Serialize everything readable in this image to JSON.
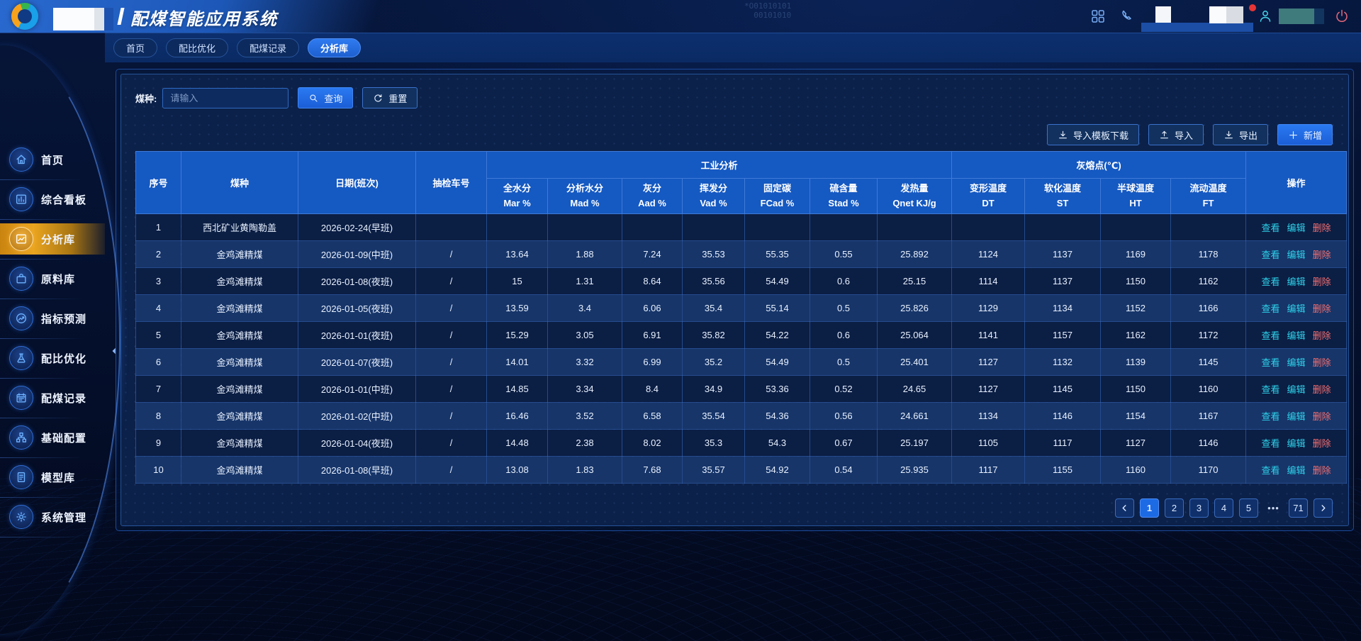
{
  "header": {
    "title": "配煤智能应用系统",
    "binary_decoration": "*O01010101\n  00101010",
    "icons": [
      {
        "name": "apps-grid-icon"
      },
      {
        "name": "phone-icon"
      },
      {
        "name": "user-icon"
      },
      {
        "name": "power-icon"
      }
    ]
  },
  "nav_tabs": {
    "items": [
      {
        "label": "首页",
        "active": false
      },
      {
        "label": "配比优化",
        "active": false
      },
      {
        "label": "配煤记录",
        "active": false
      },
      {
        "label": "分析库",
        "active": true
      }
    ]
  },
  "sidebar": {
    "items": [
      {
        "label": "首页",
        "icon": "home",
        "active": false
      },
      {
        "label": "综合看板",
        "icon": "board",
        "active": false
      },
      {
        "label": "分析库",
        "icon": "analysis",
        "active": true
      },
      {
        "label": "原料库",
        "icon": "materials",
        "active": false
      },
      {
        "label": "指标预测",
        "icon": "predict",
        "active": false
      },
      {
        "label": "配比优化",
        "icon": "flask",
        "active": false
      },
      {
        "label": "配煤记录",
        "icon": "calendar",
        "active": false
      },
      {
        "label": "基础配置",
        "icon": "blocks",
        "active": false
      },
      {
        "label": "模型库",
        "icon": "document",
        "active": false
      },
      {
        "label": "系统管理",
        "icon": "gear",
        "active": false
      }
    ]
  },
  "filter": {
    "field_label": "煤种:",
    "placeholder": "请输入",
    "query_label": "查询",
    "reset_label": "重置"
  },
  "toolbar": {
    "buttons": [
      {
        "label": "导入模板下载",
        "icon": "download",
        "primary": false
      },
      {
        "label": "导入",
        "icon": "upload",
        "primary": false
      },
      {
        "label": "导出",
        "icon": "download",
        "primary": false
      },
      {
        "label": "新增",
        "icon": "plus",
        "primary": true
      }
    ]
  },
  "table": {
    "plain_columns": [
      "序号",
      "煤种",
      "日期(班次)",
      "抽检车号"
    ],
    "groups": [
      {
        "label": "工业分析",
        "columns": [
          {
            "line1": "全水分",
            "line2": "Mar %"
          },
          {
            "line1": "分析水分",
            "line2": "Mad %"
          },
          {
            "line1": "灰分",
            "line2": "Aad %"
          },
          {
            "line1": "挥发分",
            "line2": "Vad %"
          },
          {
            "line1": "固定碳",
            "line2": "FCad %"
          },
          {
            "line1": "硫含量",
            "line2": "Stad %"
          },
          {
            "line1": "发热量",
            "line2": "Qnet KJ/g"
          }
        ]
      },
      {
        "label": "灰熔点(℃)",
        "columns": [
          {
            "line1": "变形温度",
            "line2": "DT"
          },
          {
            "line1": "软化温度",
            "line2": "ST"
          },
          {
            "line1": "半球温度",
            "line2": "HT"
          },
          {
            "line1": "流动温度",
            "line2": "FT"
          }
        ]
      }
    ],
    "op_column": "操作",
    "row_actions": [
      "查看",
      "编辑",
      "删除"
    ],
    "rows": [
      [
        "1",
        "西北矿业黄陶勒盖",
        "2026-02-24(早班)",
        "",
        "",
        "",
        "",
        "",
        "",
        "",
        "",
        "",
        "",
        "",
        ""
      ],
      [
        "2",
        "金鸡滩精煤",
        "2026-01-09(中班)",
        "/",
        "13.64",
        "1.88",
        "7.24",
        "35.53",
        "55.35",
        "0.55",
        "25.892",
        "1124",
        "1137",
        "1169",
        "1178"
      ],
      [
        "3",
        "金鸡滩精煤",
        "2026-01-08(夜班)",
        "/",
        "15",
        "1.31",
        "8.64",
        "35.56",
        "54.49",
        "0.6",
        "25.15",
        "1114",
        "1137",
        "1150",
        "1162"
      ],
      [
        "4",
        "金鸡滩精煤",
        "2026-01-05(夜班)",
        "/",
        "13.59",
        "3.4",
        "6.06",
        "35.4",
        "55.14",
        "0.5",
        "25.826",
        "1129",
        "1134",
        "1152",
        "1166"
      ],
      [
        "5",
        "金鸡滩精煤",
        "2026-01-01(夜班)",
        "/",
        "15.29",
        "3.05",
        "6.91",
        "35.82",
        "54.22",
        "0.6",
        "25.064",
        "1141",
        "1157",
        "1162",
        "1172"
      ],
      [
        "6",
        "金鸡滩精煤",
        "2026-01-07(夜班)",
        "/",
        "14.01",
        "3.32",
        "6.99",
        "35.2",
        "54.49",
        "0.5",
        "25.401",
        "1127",
        "1132",
        "1139",
        "1145"
      ],
      [
        "7",
        "金鸡滩精煤",
        "2026-01-01(中班)",
        "/",
        "14.85",
        "3.34",
        "8.4",
        "34.9",
        "53.36",
        "0.52",
        "24.65",
        "1127",
        "1145",
        "1150",
        "1160"
      ],
      [
        "8",
        "金鸡滩精煤",
        "2026-01-02(中班)",
        "/",
        "16.46",
        "3.52",
        "6.58",
        "35.54",
        "54.36",
        "0.56",
        "24.661",
        "1134",
        "1146",
        "1154",
        "1167"
      ],
      [
        "9",
        "金鸡滩精煤",
        "2026-01-04(夜班)",
        "/",
        "14.48",
        "2.38",
        "8.02",
        "35.3",
        "54.3",
        "0.67",
        "25.197",
        "1105",
        "1117",
        "1127",
        "1146"
      ],
      [
        "10",
        "金鸡滩精煤",
        "2026-01-08(早班)",
        "/",
        "13.08",
        "1.83",
        "7.68",
        "35.57",
        "54.92",
        "0.54",
        "25.935",
        "1117",
        "1155",
        "1160",
        "1170"
      ]
    ]
  },
  "pagination": {
    "pages": [
      "1",
      "2",
      "3",
      "4",
      "5",
      "•••",
      "71"
    ],
    "active": "1"
  },
  "colors": {
    "accent": "#1d6ae5",
    "active_tab": "#2f7bf0",
    "sidebar_active": "#eaa51f",
    "table_header": "#1559c2",
    "row_odd": "#0b1e44",
    "row_even": "#173569",
    "link_view": "#2ed2ea",
    "link_delete": "#f46e6e",
    "delete_red": "#e73535"
  }
}
